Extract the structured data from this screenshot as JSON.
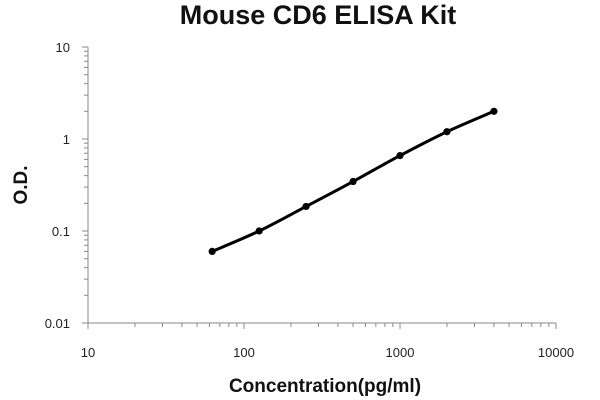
{
  "chart_data": {
    "type": "line",
    "title": "Mouse CD6 ELISA Kit",
    "xlabel": "Concentration(pg/ml)",
    "ylabel": "O.D.",
    "x_scale": "log",
    "y_scale": "log",
    "xlim": [
      10,
      10000
    ],
    "ylim": [
      0.01,
      10
    ],
    "x_ticks": [
      "10",
      "100",
      "1000",
      "10000"
    ],
    "y_ticks": [
      "0.01",
      "0.1",
      "1",
      "10"
    ],
    "grid": false,
    "legend": "none",
    "series": [
      {
        "x": [
          62.5,
          125,
          250,
          500,
          1000,
          2000,
          4000
        ],
        "y": [
          0.06,
          0.1,
          0.185,
          0.345,
          0.66,
          1.2,
          2.0
        ]
      }
    ],
    "colors": {
      "line": "#000000",
      "marker": "#000000",
      "axis": "#888888"
    }
  }
}
